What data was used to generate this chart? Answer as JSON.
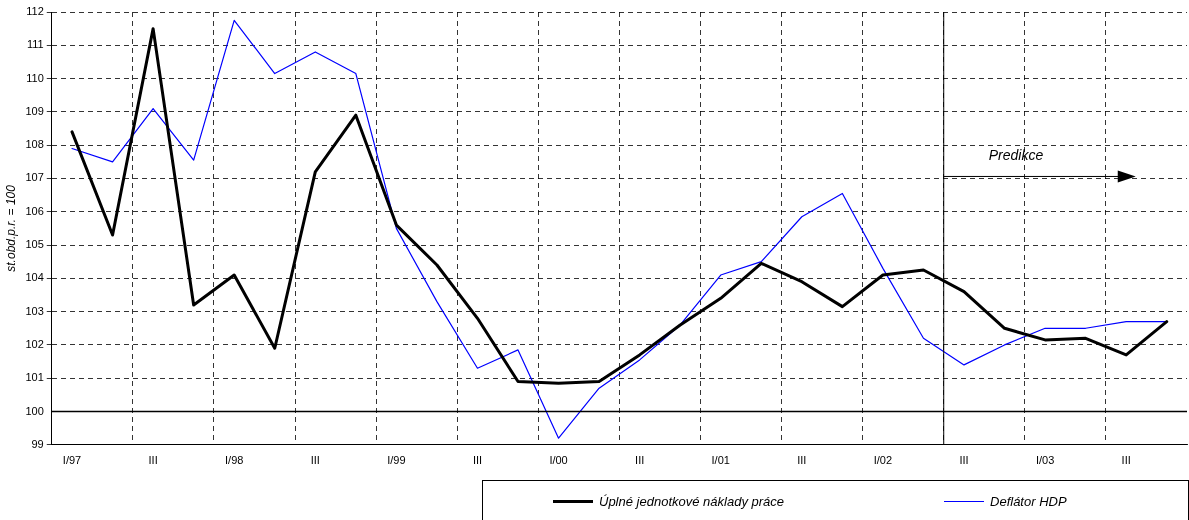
{
  "chart_data": {
    "type": "line",
    "ylabel": "st.obd.p.r. = 100",
    "categories": [
      "I/97",
      null,
      "III",
      null,
      "I/98",
      null,
      "III",
      null,
      "I/99",
      null,
      "III",
      null,
      "I/00",
      null,
      "III",
      null,
      "I/01",
      null,
      "III",
      null,
      "I/02",
      null,
      "III",
      null,
      "I/03",
      null,
      "III",
      null
    ],
    "series": [
      {
        "name": "Úplné jednotkové náklady práce",
        "color": "#000000",
        "values": [
          108.4,
          105.3,
          111.5,
          103.2,
          104.1,
          101.9,
          107.2,
          108.9,
          105.6,
          104.4,
          102.8,
          100.9,
          100.85,
          100.9,
          101.7,
          102.6,
          103.4,
          104.45,
          103.9,
          103.15,
          104.1,
          104.25,
          103.6,
          102.5,
          102.15,
          102.2,
          101.7,
          102.7
        ]
      },
      {
        "name": "Deflátor HDP",
        "color": "#0000ff",
        "values": [
          107.9,
          107.5,
          109.1,
          107.55,
          111.75,
          110.15,
          110.8,
          110.15,
          105.5,
          103.3,
          101.3,
          101.85,
          99.2,
          100.7,
          101.55,
          102.6,
          104.1,
          104.5,
          105.85,
          106.55,
          104.3,
          102.2,
          101.4,
          102.0,
          102.5,
          102.5,
          102.7,
          102.7
        ]
      }
    ],
    "ylim": [
      99,
      112
    ],
    "yticks": [
      99,
      100,
      101,
      102,
      103,
      104,
      105,
      106,
      107,
      108,
      109,
      110,
      111,
      112
    ],
    "grid": true,
    "legend": "bottom",
    "marker": "none",
    "line_style": "solid",
    "annotations": [
      "Predikce"
    ],
    "ref_lines": [
      {
        "axis": "y",
        "value": 100,
        "color": "#000000"
      }
    ]
  }
}
